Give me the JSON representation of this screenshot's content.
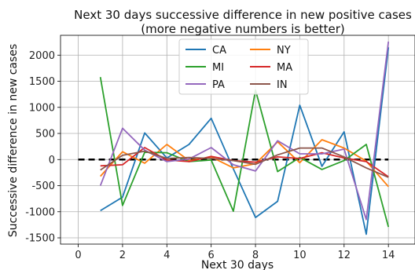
{
  "chart_data": {
    "type": "line",
    "title": "Next 30 days successive difference in new positive cases",
    "subtitle": "(more negative numbers is better)",
    "xlabel": "Next 30 days",
    "ylabel": "Successive difference in new cases",
    "xlim": [
      -0.8,
      15.2
    ],
    "ylim": [
      -1620,
      2380
    ],
    "xticks": [
      0,
      2,
      4,
      6,
      8,
      10,
      12,
      14
    ],
    "yticks": [
      -1500,
      -1000,
      -500,
      0,
      500,
      1000,
      1500,
      2000
    ],
    "grid": true,
    "legend_position": "top-center",
    "x": [
      1,
      2,
      3,
      4,
      5,
      6,
      7,
      8,
      9,
      10,
      11,
      12,
      13,
      14
    ],
    "baseline": {
      "y": 0,
      "x_range": [
        0,
        14
      ],
      "style": "dashed",
      "color": "#000000"
    },
    "series": [
      {
        "name": "CA",
        "color": "#1f77b4",
        "values": [
          -980,
          -720,
          510,
          30,
          290,
          790,
          -180,
          -1110,
          -800,
          1040,
          -130,
          530,
          -1430,
          2150
        ]
      },
      {
        "name": "NY",
        "color": "#ff7f0e",
        "values": [
          -320,
          150,
          -70,
          290,
          -20,
          50,
          -160,
          -80,
          340,
          -60,
          380,
          220,
          -30,
          -520
        ]
      },
      {
        "name": "MI",
        "color": "#2ca02c",
        "values": [
          1580,
          -880,
          140,
          130,
          -40,
          -10,
          -990,
          1330,
          -230,
          40,
          -190,
          -20,
          290,
          -1290
        ]
      },
      {
        "name": "MA",
        "color": "#d62728",
        "values": [
          -120,
          -100,
          230,
          -10,
          -40,
          60,
          -20,
          -50,
          50,
          20,
          130,
          30,
          -40,
          -330
        ]
      },
      {
        "name": "PA",
        "color": "#9467bd",
        "values": [
          -500,
          600,
          180,
          -40,
          10,
          230,
          -100,
          -220,
          360,
          110,
          110,
          200,
          -1150,
          2260
        ]
      },
      {
        "name": "IN",
        "color": "#8c564b",
        "values": [
          -200,
          80,
          160,
          20,
          40,
          20,
          -20,
          -90,
          90,
          220,
          220,
          50,
          -160,
          -340
        ]
      }
    ]
  }
}
